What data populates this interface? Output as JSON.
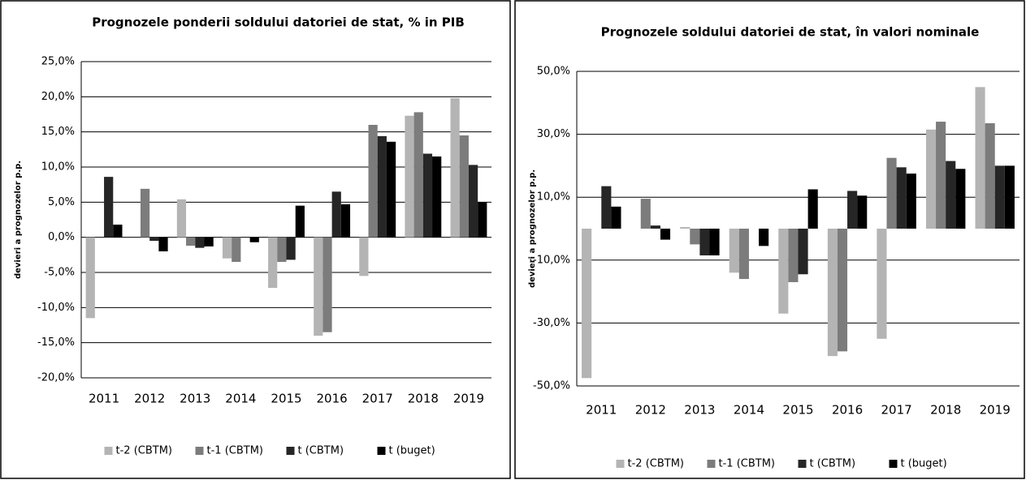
{
  "chart_data": [
    {
      "type": "bar",
      "title": "Prognozele ponderii soldului datoriei de stat, % in PIB",
      "y_label": "devieri a prognozelor p.p.",
      "categories": [
        "2011",
        "2012",
        "2013",
        "2014",
        "2015",
        "2016",
        "2017",
        "2018",
        "2019"
      ],
      "series": [
        {
          "name": "t-2 (CBTM)",
          "color": "#b4b4b4",
          "values": [
            -11.5,
            null,
            5.4,
            -3.0,
            -7.2,
            -14.0,
            -5.5,
            17.3,
            19.8
          ]
        },
        {
          "name": "t-1 (CBTM)",
          "color": "#7c7c7c",
          "values": [
            null,
            6.9,
            -1.2,
            -3.5,
            -3.5,
            -13.5,
            16.0,
            17.8,
            14.5
          ]
        },
        {
          "name": "t (CBTM)",
          "color": "#262626",
          "values": [
            8.6,
            -0.5,
            -1.5,
            null,
            -3.2,
            6.5,
            14.4,
            11.9,
            10.3
          ]
        },
        {
          "name": "t (buget)",
          "color": "#000000",
          "values": [
            1.8,
            -2.0,
            -1.3,
            -0.7,
            4.5,
            4.7,
            13.6,
            11.5,
            5.0
          ]
        }
      ],
      "ylim": [
        -20,
        25
      ],
      "yticks": [
        {
          "value": -20,
          "label": "-20,0%"
        },
        {
          "value": -15,
          "label": "-15,0%"
        },
        {
          "value": -10,
          "label": "-10,0%"
        },
        {
          "value": -5,
          "label": "-5,0%"
        },
        {
          "value": 0,
          "label": "0,0%"
        },
        {
          "value": 5,
          "label": "5,0%"
        },
        {
          "value": 10,
          "label": "10,0%"
        },
        {
          "value": 15,
          "label": "15,0%"
        },
        {
          "value": 20,
          "label": "20,0%"
        },
        {
          "value": 25,
          "label": "25,0%"
        }
      ],
      "grid": true,
      "legend": "bottom"
    },
    {
      "type": "bar",
      "title": "Prognozele soldului datoriei de stat, în valori nominale",
      "y_label": "devieri a prognozelor p.p.",
      "categories": [
        "2011",
        "2012",
        "2013",
        "2014",
        "2015",
        "2016",
        "2017",
        "2018",
        "2019"
      ],
      "series": [
        {
          "name": "t-2 (CBTM)",
          "color": "#b4b4b4",
          "values": [
            -47.5,
            null,
            0.5,
            -14,
            -27,
            -40.5,
            -35,
            31.5,
            45
          ]
        },
        {
          "name": "t-1 (CBTM)",
          "color": "#7c7c7c",
          "values": [
            null,
            9.5,
            -5,
            -16,
            -17,
            -39,
            22.5,
            34,
            33.5
          ]
        },
        {
          "name": "t (CBTM)",
          "color": "#262626",
          "values": [
            13.5,
            1,
            -8.5,
            null,
            -14.5,
            12,
            19.5,
            21.5,
            20
          ]
        },
        {
          "name": "t (buget)",
          "color": "#000000",
          "values": [
            7,
            -3.5,
            -8.5,
            -5.5,
            12.5,
            10.5,
            17.5,
            19,
            20
          ]
        }
      ],
      "ylim": [
        -50,
        50
      ],
      "yticks": [
        {
          "value": -50,
          "label": "-50,0%"
        },
        {
          "value": -30,
          "label": "-30,0%"
        },
        {
          "value": -10,
          "label": "-10,0%"
        },
        {
          "value": 10,
          "label": "10,0%"
        },
        {
          "value": 30,
          "label": "30,0%"
        },
        {
          "value": 50,
          "label": "50,0%"
        }
      ],
      "grid": true,
      "legend": "bottom"
    }
  ]
}
